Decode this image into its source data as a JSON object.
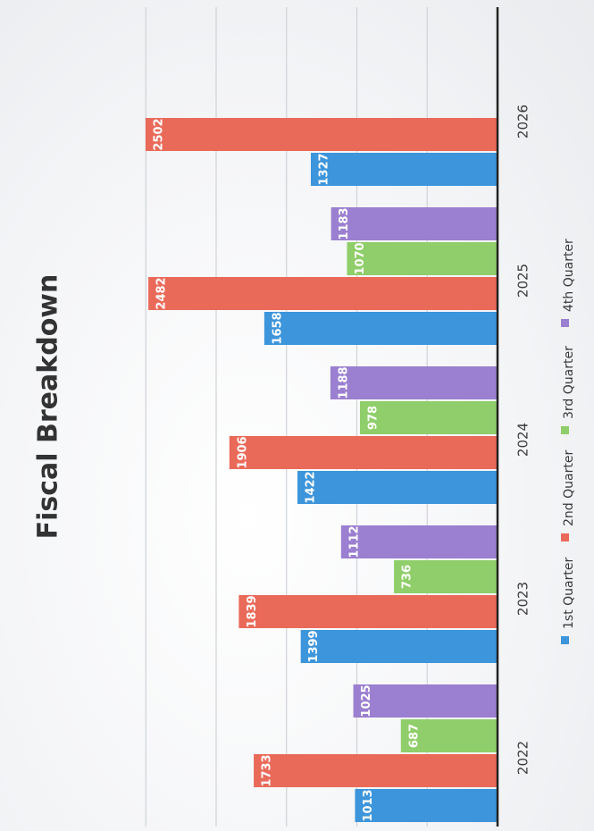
{
  "chart_data": {
    "type": "bar",
    "orientation": "rotated-90-ccw",
    "title": "Fiscal Breakdown",
    "xlabel": "",
    "ylabel": "",
    "categories": [
      "2022",
      "2023",
      "2024",
      "2025",
      "2026"
    ],
    "ylim": [
      0,
      2800
    ],
    "grid": true,
    "legend": "bottom",
    "series": [
      {
        "name": "1st Quarter",
        "color": "#3d95db",
        "values": [
          1013,
          1399,
          1422,
          1658,
          1327
        ]
      },
      {
        "name": "2nd Quarter",
        "color": "#ea6a5a",
        "values": [
          1733,
          1839,
          1906,
          2482,
          2502
        ]
      },
      {
        "name": "3rd Quarter",
        "color": "#8fce6a",
        "values": [
          687,
          736,
          978,
          1070,
          null
        ]
      },
      {
        "name": "4th Quarter",
        "color": "#9b7fd0",
        "values": [
          1025,
          1112,
          1188,
          1183,
          null
        ]
      }
    ]
  }
}
